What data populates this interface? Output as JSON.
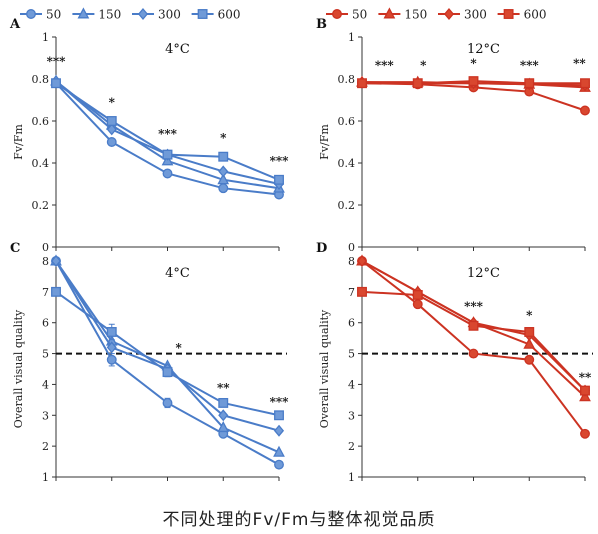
{
  "caption": "不同处理的Fv/Fm与整体视觉品质",
  "colors": {
    "blue": "#4a7cc8",
    "blue_fill": "#6f9ad8",
    "red": "#cc3322",
    "red_fill": "#d9472f"
  },
  "legends": [
    {
      "entries": [
        "50",
        "150",
        "300",
        "600"
      ],
      "markers": [
        "circle",
        "triangle",
        "diamond",
        "square"
      ],
      "color": "blue"
    },
    {
      "entries": [
        "50",
        "150",
        "300",
        "600"
      ],
      "markers": [
        "circle",
        "triangle",
        "diamond",
        "square"
      ],
      "color": "red"
    }
  ],
  "chart_data": [
    {
      "type": "line",
      "panel_label": "A",
      "title": "4°C",
      "ylabel": "Fv/Fm",
      "color": "blue",
      "ylim": [
        0,
        1
      ],
      "yticks": [
        "0",
        "0.2",
        "0.4",
        "0.6",
        "0.8",
        "1"
      ],
      "x": [
        1,
        2,
        3,
        4,
        5
      ],
      "grid": false,
      "series": [
        {
          "name": "50",
          "marker": "circle",
          "values": [
            0.78,
            0.5,
            0.35,
            0.28,
            0.25
          ]
        },
        {
          "name": "150",
          "marker": "triangle",
          "values": [
            0.79,
            0.58,
            0.41,
            0.32,
            0.28
          ]
        },
        {
          "name": "300",
          "marker": "diamond",
          "values": [
            0.79,
            0.56,
            0.44,
            0.36,
            0.3
          ]
        },
        {
          "name": "600",
          "marker": "square",
          "values": [
            0.78,
            0.6,
            0.44,
            0.43,
            0.32
          ]
        }
      ],
      "annotations": [
        {
          "x": 1,
          "y": 0.865,
          "text": "***"
        },
        {
          "x": 2,
          "y": 0.67,
          "text": "*"
        },
        {
          "x": 3,
          "y": 0.52,
          "text": "***"
        },
        {
          "x": 4,
          "y": 0.5,
          "text": "*"
        },
        {
          "x": 5,
          "y": 0.39,
          "text": "***"
        }
      ]
    },
    {
      "type": "line",
      "panel_label": "B",
      "title": "12°C",
      "ylabel": "Fv/Fm",
      "color": "red",
      "ylim": [
        0,
        1
      ],
      "yticks": [
        "0",
        "0.2",
        "0.4",
        "0.6",
        "0.8",
        "1"
      ],
      "x": [
        1,
        2,
        3,
        4,
        5
      ],
      "grid": false,
      "series": [
        {
          "name": "50",
          "marker": "circle",
          "values": [
            0.78,
            0.775,
            0.76,
            0.74,
            0.65
          ]
        },
        {
          "name": "150",
          "marker": "triangle",
          "values": [
            0.785,
            0.785,
            0.78,
            0.775,
            0.76
          ]
        },
        {
          "name": "300",
          "marker": "diamond",
          "values": [
            0.785,
            0.78,
            0.78,
            0.775,
            0.77
          ]
        },
        {
          "name": "600",
          "marker": "square",
          "values": [
            0.78,
            0.78,
            0.79,
            0.78,
            0.78
          ]
        }
      ],
      "annotations": [
        {
          "x": 1.4,
          "y": 0.845,
          "text": "***"
        },
        {
          "x": 2.1,
          "y": 0.845,
          "text": "*"
        },
        {
          "x": 3.0,
          "y": 0.855,
          "text": "*"
        },
        {
          "x": 4.0,
          "y": 0.845,
          "text": "***"
        },
        {
          "x": 4.9,
          "y": 0.855,
          "text": "**"
        }
      ]
    },
    {
      "type": "line",
      "panel_label": "C",
      "title": "4°C",
      "ylabel": "Overall visual quality",
      "color": "blue",
      "ylim": [
        1,
        8
      ],
      "yticks": [
        "1",
        "2",
        "3",
        "4",
        "5",
        "6",
        "7",
        "8"
      ],
      "x": [
        1,
        2,
        3,
        4,
        5
      ],
      "grid": false,
      "hline": 5,
      "series": [
        {
          "name": "50",
          "marker": "circle",
          "values": [
            8,
            4.8,
            3.4,
            2.4,
            1.4
          ],
          "err": [
            0,
            0.2,
            0.15,
            0,
            0
          ]
        },
        {
          "name": "150",
          "marker": "triangle",
          "values": [
            8,
            5.4,
            4.6,
            2.6,
            1.8
          ]
        },
        {
          "name": "300",
          "marker": "diamond",
          "values": [
            8,
            5.2,
            4.5,
            3.0,
            2.5
          ]
        },
        {
          "name": "600",
          "marker": "square",
          "values": [
            7,
            5.7,
            4.4,
            3.4,
            3.0
          ],
          "err": [
            0,
            0.25,
            0.15,
            0,
            0
          ]
        }
      ],
      "annotations": [
        {
          "x": 3.2,
          "y": 5.05,
          "text": "*"
        },
        {
          "x": 4.0,
          "y": 3.75,
          "text": "**"
        },
        {
          "x": 5.0,
          "y": 3.3,
          "text": "***"
        }
      ]
    },
    {
      "type": "line",
      "panel_label": "D",
      "title": "12°C",
      "ylabel": "Overall visual quality",
      "color": "red",
      "ylim": [
        1,
        8
      ],
      "yticks": [
        "1",
        "2",
        "3",
        "4",
        "5",
        "6",
        "7",
        "8"
      ],
      "x": [
        1,
        2,
        3,
        4,
        5
      ],
      "grid": false,
      "hline": 5,
      "series": [
        {
          "name": "50",
          "marker": "circle",
          "values": [
            8,
            6.6,
            5.0,
            4.8,
            2.4
          ]
        },
        {
          "name": "150",
          "marker": "triangle",
          "values": [
            8,
            7.0,
            6.0,
            5.3,
            3.6
          ]
        },
        {
          "name": "300",
          "marker": "diamond",
          "values": [
            8,
            7.0,
            6.0,
            5.6,
            3.8
          ]
        },
        {
          "name": "600",
          "marker": "square",
          "values": [
            7,
            6.9,
            5.9,
            5.7,
            3.8
          ]
        }
      ],
      "annotations": [
        {
          "x": 3.0,
          "y": 6.4,
          "text": "***"
        },
        {
          "x": 4.0,
          "y": 6.1,
          "text": "*"
        },
        {
          "x": 5.0,
          "y": 4.1,
          "text": "**"
        }
      ]
    }
  ]
}
